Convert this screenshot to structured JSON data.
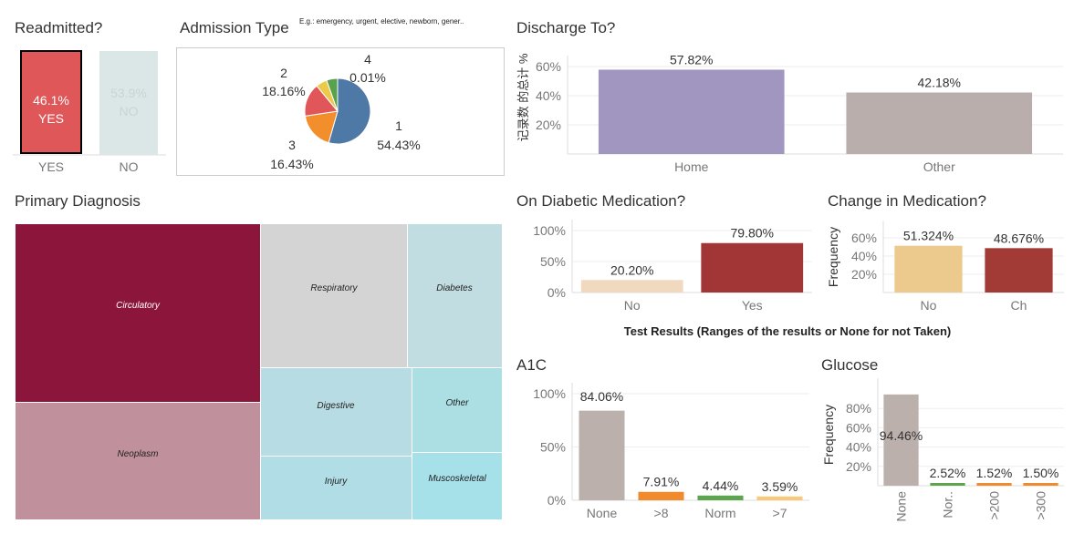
{
  "readmitted": {
    "title": "Readmitted?",
    "yes_pct": "46.1%",
    "yes_label": "YES",
    "no_pct": "53.9%",
    "no_label": "NO",
    "axis_yes": "YES",
    "axis_no": "NO"
  },
  "admission": {
    "title": "Admission Type",
    "subtitle": "E.g.: emergency, urgent, elective, newborn, gener..",
    "slices": [
      {
        "name": "1",
        "pct": "54.43%",
        "value": 54.43,
        "color": "#4e79a7"
      },
      {
        "name": "2",
        "pct": "18.16%",
        "value": 18.16,
        "color": "#f28e2b"
      },
      {
        "name": "3",
        "pct": "16.43%",
        "value": 16.43,
        "color": "#e15759"
      },
      {
        "name": "4",
        "pct": "0.01%",
        "value": 0.01,
        "color": "#59a14f"
      },
      {
        "name": "",
        "pct": "",
        "value": 5.5,
        "color": "#edc948"
      },
      {
        "name": "",
        "pct": "",
        "value": 5.47,
        "color": "#59a14f"
      }
    ]
  },
  "discharge": {
    "title": "Discharge To?",
    "ylabel": "记录数 的总计 %",
    "yticks": [
      "20%",
      "40%",
      "60%"
    ],
    "categories": [
      "Home",
      "Other"
    ],
    "values": [
      57.82,
      42.18
    ],
    "labels": [
      "57.82%",
      "42.18%"
    ],
    "colors": [
      "#a096bf",
      "#b9aeab"
    ]
  },
  "primary_diagnosis": {
    "title": "Primary Diagnosis",
    "cells": [
      {
        "name": "Circulatory",
        "color": "#8c153c",
        "text_color": "#ffffff"
      },
      {
        "name": "Neoplasm",
        "color": "#c0909d",
        "text_color": "#222222"
      },
      {
        "name": "Respiratory",
        "color": "#d4d4d4",
        "text_color": "#222222"
      },
      {
        "name": "Diabetes",
        "color": "#c1dde1",
        "text_color": "#222222"
      },
      {
        "name": "Digestive",
        "color": "#b8dce3",
        "text_color": "#222222"
      },
      {
        "name": "Other",
        "color": "#acdfe4",
        "text_color": "#222222"
      },
      {
        "name": "Injury",
        "color": "#b0dde6",
        "text_color": "#222222"
      },
      {
        "name": "Muscoskeletal",
        "color": "#a6e0e8",
        "text_color": "#222222"
      }
    ]
  },
  "diabetic_med": {
    "title": "On Diabetic Medication?",
    "yticks": [
      "0%",
      "50%",
      "100%"
    ],
    "categories": [
      "No",
      "Yes"
    ],
    "values": [
      20.2,
      79.8
    ],
    "labels": [
      "20.20%",
      "79.80%"
    ],
    "colors": [
      "#f1d9c0",
      "#a23535"
    ]
  },
  "change_med": {
    "title": "Change in Medication?",
    "ylabel": "Frequency",
    "yticks": [
      "20%",
      "40%",
      "60%"
    ],
    "categories": [
      "No",
      "Ch"
    ],
    "values": [
      51.324,
      48.676
    ],
    "labels": [
      "51.324%",
      "48.676%"
    ],
    "colors": [
      "#ecc98c",
      "#a23a35"
    ]
  },
  "test_results": {
    "title": "Test Results (Ranges of the results or None for not Taken)"
  },
  "a1c": {
    "title": "A1C",
    "yticks": [
      "0%",
      "50%",
      "100%"
    ],
    "categories": [
      "None",
      ">8",
      "Norm",
      ">7"
    ],
    "values": [
      84.06,
      7.91,
      4.44,
      3.59
    ],
    "labels": [
      "84.06%",
      "7.91%",
      "4.44%",
      "3.59%"
    ],
    "colors": [
      "#bbb0ac",
      "#f08a2c",
      "#5da44f",
      "#f8c97a"
    ]
  },
  "glucose": {
    "title": "Glucose",
    "ylabel": "Frequency",
    "yticks": [
      "20%",
      "40%",
      "60%",
      "80%"
    ],
    "categories": [
      "None",
      "Nor..",
      ">200",
      ">300"
    ],
    "values": [
      94.46,
      2.52,
      1.52,
      1.5
    ],
    "labels": [
      "94.46%",
      "2.52%",
      "1.52%",
      "1.50%"
    ],
    "colors": [
      "#bbb0ac",
      "#5da44f",
      "#f08a2c",
      "#f08a2c"
    ]
  }
}
